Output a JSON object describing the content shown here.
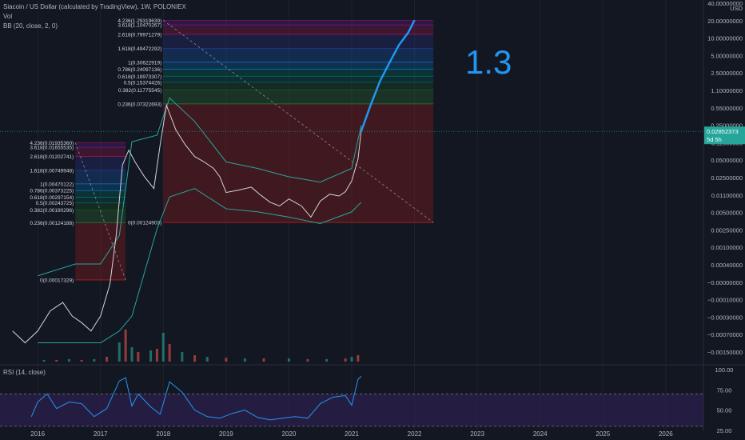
{
  "legend": {
    "symbol": "Siacoin / US Dollar (calculated by TradingView), 1W, POLONIEX",
    "volume": "Vol",
    "bb": "BB (20, close, 2, 0)",
    "rsi": "RSI (14, close)"
  },
  "annotation": "1.3",
  "price_axis": {
    "unit": "USD",
    "labels": [
      "40.00000000",
      "20.00000000",
      "10.00000000",
      "5.00000000",
      "2.50000000",
      "1.10000000",
      "0.55000000",
      "0.25000000",
      "0.11000000",
      "0.05000000",
      "0.02500000",
      "0.01100000",
      "0.00500000",
      "0.00250000",
      "0.00100000",
      "0.00040000",
      "−0.00000000",
      "−0.00010000",
      "−0.00030000",
      "−0.00070000",
      "−0.00150000"
    ],
    "current_price": "0.02852373",
    "countdown": "5d 5h"
  },
  "rsi_axis": {
    "labels": [
      "100.00",
      "75.00",
      "50.00",
      "25.00"
    ]
  },
  "time_axis": {
    "labels": [
      "2016",
      "2017",
      "2018",
      "2019",
      "2020",
      "2021",
      "2022",
      "2023",
      "2024",
      "2025",
      "2026"
    ]
  },
  "colors": {
    "background": "#131722",
    "up": "#26a69a",
    "down": "#ef5350",
    "rsi_line": "#7e57c2",
    "rsi_band": "#2b1f4a",
    "bb": "#26a69a",
    "annotation": "#2196f3",
    "forecast": "#2196f3"
  },
  "chart_data": [
    {
      "type": "line",
      "title": "Siacoin / US Dollar (calculated by TradingView), 1W, POLONIEX",
      "scale": "log",
      "ylabel": "USD",
      "x_range": [
        2015.4,
        2026.6
      ],
      "series": [
        {
          "name": "price",
          "x": [
            2015.6,
            2015.8,
            2016.0,
            2016.2,
            2016.4,
            2016.55,
            2016.7,
            2016.85,
            2017.0,
            2017.15,
            2017.25,
            2017.35,
            2017.45,
            2017.55,
            2017.7,
            2017.85,
            2017.95,
            2018.05,
            2018.2,
            2018.35,
            2018.5,
            2018.65,
            2018.8,
            2018.9,
            2019.0,
            2019.2,
            2019.4,
            2019.55,
            2019.7,
            2019.85,
            2020.0,
            2020.2,
            2020.35,
            2020.5,
            2020.65,
            2020.8,
            2020.9,
            2021.0,
            2021.1,
            2021.15
          ],
          "values": [
            3e-05,
            2e-05,
            3e-05,
            6e-05,
            8e-05,
            5e-05,
            4e-05,
            3e-05,
            5e-05,
            0.00015,
            0.0008,
            0.009,
            0.015,
            0.01,
            0.006,
            0.004,
            0.018,
            0.07,
            0.03,
            0.018,
            0.012,
            0.01,
            0.008,
            0.006,
            0.0035,
            0.0038,
            0.0042,
            0.0032,
            0.0025,
            0.0022,
            0.0028,
            0.0022,
            0.0015,
            0.0026,
            0.0033,
            0.0031,
            0.0036,
            0.0052,
            0.011,
            0.0285
          ]
        },
        {
          "name": "forecast",
          "x": [
            2021.15,
            2021.3,
            2021.45,
            2021.6,
            2021.75,
            2021.9,
            2022.0
          ],
          "values": [
            0.0285,
            0.07,
            0.16,
            0.3,
            0.55,
            0.85,
            1.3
          ]
        },
        {
          "name": "BB upper",
          "x": [
            2016.0,
            2016.6,
            2017.0,
            2017.3,
            2017.5,
            2017.9,
            2018.1,
            2018.5,
            2019.0,
            2019.5,
            2020.0,
            2020.5,
            2021.0,
            2021.15
          ],
          "values": [
            0.0002,
            0.0003,
            0.0003,
            0.0008,
            0.02,
            0.025,
            0.09,
            0.04,
            0.01,
            0.008,
            0.006,
            0.005,
            0.008,
            0.035
          ]
        },
        {
          "name": "BB lower",
          "x": [
            2016.0,
            2016.6,
            2017.0,
            2017.3,
            2017.5,
            2017.9,
            2018.1,
            2018.5,
            2019.0,
            2019.5,
            2020.0,
            2020.5,
            2021.0,
            2021.15
          ],
          "values": [
            2e-05,
            2e-05,
            2e-05,
            3e-05,
            5e-05,
            0.001,
            0.003,
            0.004,
            0.002,
            0.0018,
            0.0015,
            0.0012,
            0.0018,
            0.0025
          ]
        }
      ],
      "fib_levels_2017": [
        {
          "label": "0(0.00017329)",
          "value": 0.00017329
        },
        {
          "label": "0.236(0.00124188)",
          "value": 0.00124188
        },
        {
          "label": "0.382(0.00190296)",
          "value": 0.00190296
        },
        {
          "label": "0.5(0.00243725)",
          "value": 0.00243725
        },
        {
          "label": "0.618(0.00297154)",
          "value": 0.00297154
        },
        {
          "label": "0.786(0.00373225)",
          "value": 0.00373225
        },
        {
          "label": "1(0.00470122)",
          "value": 0.00470122
        },
        {
          "label": "1.618(0.00749948)",
          "value": 0.00749948
        },
        {
          "label": "2.618(0.01202741)",
          "value": 0.01202741
        },
        {
          "label": "3.618(0.01655535)",
          "value": 0.01655535
        },
        {
          "label": "4.236(0.01935360)",
          "value": 0.0193536
        }
      ],
      "fib_levels_2018": [
        {
          "label": "0(0.00124903)",
          "value": 0.00124903
        },
        {
          "label": "0.236(0.07322693)",
          "value": 0.07322693
        },
        {
          "label": "0.382(0.11775545)",
          "value": 0.11775545
        },
        {
          "label": "0.5(0.15374426)",
          "value": 0.15374426
        },
        {
          "label": "0.618(0.18973307)",
          "value": 0.18973307
        },
        {
          "label": "0.786(0.24097136)",
          "value": 0.24097136
        },
        {
          "label": "1(0.30622919)",
          "value": 0.30622919
        },
        {
          "label": "1.618(0.49472292)",
          "value": 0.49472292
        },
        {
          "label": "2.618(0.79971279)",
          "value": 0.79971279
        },
        {
          "label": "3.618(1.10470267)",
          "value": 1.10470267
        },
        {
          "label": "4.236(1.29319639)",
          "value": 1.29319639
        }
      ],
      "volume": {
        "x": [
          2016.1,
          2016.3,
          2016.5,
          2016.7,
          2016.9,
          2017.1,
          2017.3,
          2017.4,
          2017.5,
          2017.6,
          2017.8,
          2017.9,
          2018.0,
          2018.1,
          2018.3,
          2018.5,
          2018.7,
          2019.0,
          2019.3,
          2019.6,
          2020.0,
          2020.3,
          2020.6,
          2020.9,
          2021.0,
          2021.1
        ],
        "values": [
          0.05,
          0.05,
          0.08,
          0.05,
          0.08,
          0.15,
          0.6,
          1.0,
          0.45,
          0.3,
          0.35,
          0.4,
          0.9,
          0.55,
          0.3,
          0.2,
          0.15,
          0.12,
          0.1,
          0.1,
          0.1,
          0.08,
          0.08,
          0.1,
          0.15,
          0.2
        ]
      },
      "rsi": {
        "ylim": [
          25,
          100
        ],
        "x": [
          2015.9,
          2016.0,
          2016.15,
          2016.3,
          2016.5,
          2016.7,
          2016.9,
          2017.1,
          2017.3,
          2017.4,
          2017.5,
          2017.6,
          2017.8,
          2017.95,
          2018.1,
          2018.3,
          2018.5,
          2018.7,
          2018.9,
          2019.1,
          2019.3,
          2019.5,
          2019.7,
          2019.9,
          2020.1,
          2020.3,
          2020.5,
          2020.7,
          2020.9,
          2021.0,
          2021.1,
          2021.15
        ],
        "values": [
          42,
          60,
          70,
          52,
          60,
          58,
          42,
          52,
          86,
          90,
          55,
          70,
          54,
          45,
          85,
          72,
          50,
          42,
          40,
          46,
          50,
          41,
          38,
          40,
          42,
          40,
          58,
          66,
          68,
          56,
          88,
          92
        ]
      }
    }
  ]
}
